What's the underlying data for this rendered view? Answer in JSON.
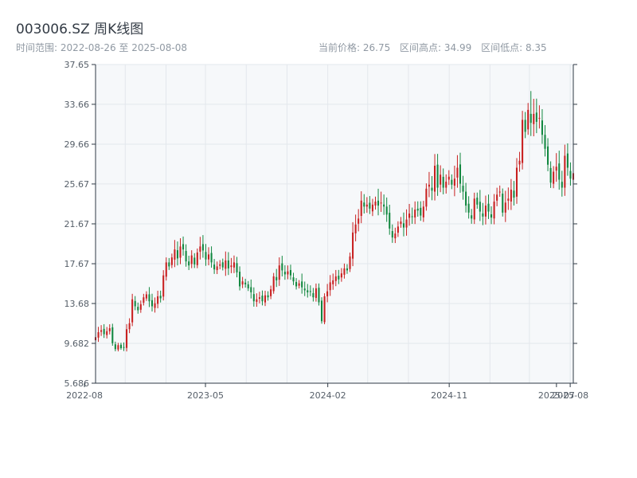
{
  "header": {
    "title": "003006.SZ 周K线图",
    "range_text": "时间范围: 2022-08-26 至 2025-08-08"
  },
  "stats": {
    "current": "当前价格: 26.75",
    "high": "区间高点: 34.99",
    "low": "区间低点: 8.35"
  },
  "colors": {
    "up": "#c81f1f",
    "down": "#11873f",
    "grid": "#e3e7ec",
    "plot_bg": "#f6f8fa",
    "axis": "#2f3a45"
  },
  "chart_data": {
    "type": "candlestick",
    "title": "003006.SZ 周K线图",
    "start_date": "2022-08-26",
    "end_date": "2025-08-08",
    "ylim": [
      5.686,
      37.65
    ],
    "yticks": [
      "37.65",
      "33.66",
      "29.66",
      "25.67",
      "21.67",
      "17.67",
      "13.68",
      "9.682",
      "5.686"
    ],
    "xticks": [
      "2022-08",
      "2023-05",
      "2024-02",
      "2024-11",
      "2025-07",
      "2025-08"
    ],
    "close": [
      10.3,
      10.8,
      11.0,
      10.6,
      10.9,
      11.2,
      9.7,
      9.1,
      9.5,
      9.2,
      9.3,
      11.1,
      11.7,
      14.1,
      13.4,
      13.0,
      13.6,
      14.3,
      14.6,
      13.9,
      13.4,
      13.7,
      14.4,
      14.2,
      16.5,
      17.8,
      17.4,
      18.3,
      19.1,
      18.2,
      19.4,
      19.1,
      17.9,
      17.5,
      18.5,
      17.6,
      18.8,
      19.4,
      19.0,
      18.1,
      18.6,
      17.8,
      17.1,
      17.4,
      17.6,
      17.3,
      18.0,
      17.2,
      17.5,
      17.8,
      16.8,
      15.4,
      15.9,
      15.6,
      15.2,
      14.8,
      13.9,
      14.1,
      14.3,
      13.9,
      14.5,
      14.3,
      15.1,
      16.4,
      16.0,
      17.5,
      17.0,
      16.6,
      16.9,
      16.5,
      15.9,
      15.4,
      15.7,
      15.3,
      15.0,
      14.8,
      14.9,
      14.3,
      15.2,
      13.8,
      11.9,
      14.4,
      14.9,
      15.8,
      16.0,
      16.4,
      16.1,
      16.7,
      17.2,
      17.0,
      18.4,
      20.8,
      21.6,
      22.2,
      24.0,
      23.4,
      23.6,
      23.2,
      23.6,
      23.9,
      23.5,
      23.8,
      23.4,
      22.6,
      21.2,
      20.3,
      20.7,
      21.4,
      21.9,
      21.3,
      22.1,
      22.7,
      22.4,
      23.1,
      23.0,
      22.5,
      23.4,
      25.2,
      25.6,
      25.0,
      27.5,
      25.3,
      26.6,
      25.3,
      25.9,
      26.4,
      25.6,
      26.2,
      27.3,
      25.7,
      24.9,
      23.5,
      22.8,
      22.2,
      24.2,
      23.6,
      22.9,
      22.4,
      23.5,
      22.9,
      22.3,
      23.9,
      24.6,
      24.9,
      22.8,
      23.8,
      24.2,
      25.1,
      24.3,
      27.3,
      28.0,
      32.1,
      30.9,
      33.1,
      31.8,
      32.7,
      31.9,
      32.3,
      30.6,
      29.2,
      27.6,
      25.8,
      26.9,
      27.4,
      26.1,
      25.3,
      28.5,
      27.3,
      26.2,
      26.75
    ],
    "y_max_high": 34.99,
    "y_min_low": 8.35
  }
}
